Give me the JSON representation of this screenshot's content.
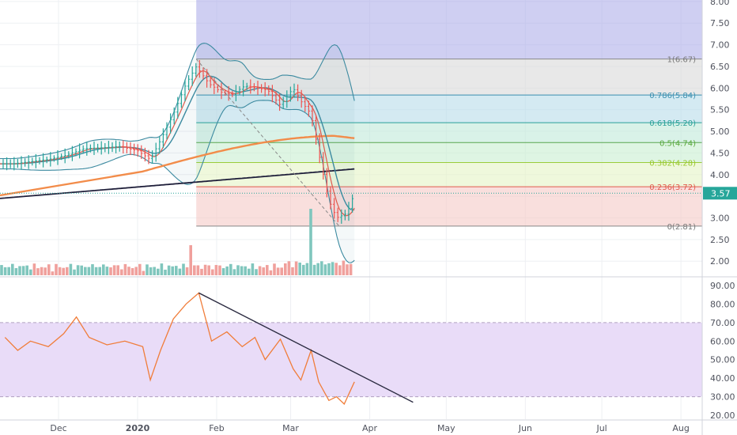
{
  "chart_data": [
    {
      "type": "candlestick",
      "panel": "price",
      "ylim": [
        1.5,
        8.0
      ],
      "y_ticks": [
        "8.00",
        "7.50",
        "7.00",
        "6.50",
        "6.00",
        "5.50",
        "5.00",
        "4.50",
        "4.00",
        "3.50",
        "3.00",
        "2.50",
        "2.00"
      ],
      "last_price": "3.57",
      "x_ticks": [
        "Dec",
        "2020",
        "Feb",
        "Mar",
        "Apr",
        "May",
        "Jun",
        "Jul",
        "Aug"
      ],
      "price_series": [
        {
          "date": "2019-11-13",
          "value": 4.25
        },
        {
          "date": "2019-11-20",
          "value": 4.3
        },
        {
          "date": "2019-11-27",
          "value": 4.35
        },
        {
          "date": "2019-12-04",
          "value": 4.45
        },
        {
          "date": "2019-12-11",
          "value": 4.6
        },
        {
          "date": "2019-12-18",
          "value": 4.62
        },
        {
          "date": "2019-12-25",
          "value": 4.65
        },
        {
          "date": "2020-01-01",
          "value": 4.55
        },
        {
          "date": "2020-01-06",
          "value": 4.35
        },
        {
          "date": "2020-01-10",
          "value": 4.8
        },
        {
          "date": "2020-01-15",
          "value": 5.4
        },
        {
          "date": "2020-01-20",
          "value": 6.1
        },
        {
          "date": "2020-01-24",
          "value": 6.5
        },
        {
          "date": "2020-01-29",
          "value": 6.1
        },
        {
          "date": "2020-02-03",
          "value": 5.9
        },
        {
          "date": "2020-02-07",
          "value": 5.85
        },
        {
          "date": "2020-02-12",
          "value": 6.05
        },
        {
          "date": "2020-02-17",
          "value": 6.0
        },
        {
          "date": "2020-02-21",
          "value": 5.95
        },
        {
          "date": "2020-02-26",
          "value": 5.6
        },
        {
          "date": "2020-03-02",
          "value": 6.0
        },
        {
          "date": "2020-03-05",
          "value": 5.7
        },
        {
          "date": "2020-03-09",
          "value": 5.4
        },
        {
          "date": "2020-03-12",
          "value": 4.5
        },
        {
          "date": "2020-03-16",
          "value": 3.4
        },
        {
          "date": "2020-03-19",
          "value": 3.0
        },
        {
          "date": "2020-03-23",
          "value": 3.1
        },
        {
          "date": "2020-03-26",
          "value": 3.57
        }
      ],
      "volume_spikes": [
        {
          "date": "2020-01-22",
          "value": "high"
        },
        {
          "date": "2020-03-09",
          "value": "very high"
        }
      ],
      "fibonacci": [
        {
          "level": "1(6.67)",
          "price": 6.67
        },
        {
          "level": "0.786(5.84)",
          "price": 5.84
        },
        {
          "level": "0.618(5.20)",
          "price": 5.2
        },
        {
          "level": "0.5(4.74)",
          "price": 4.74
        },
        {
          "level": "0.382(4.28)",
          "price": 4.28
        },
        {
          "level": "0.236(3.72)",
          "price": 3.72
        },
        {
          "level": "0(2.81)",
          "price": 2.81
        }
      ],
      "moving_average_colors": [
        "#f28c4a",
        "#1f1f3a",
        "#3c8aa0",
        "#e05a4c"
      ]
    },
    {
      "type": "line",
      "panel": "rsi",
      "ylim": [
        20,
        92
      ],
      "y_ticks": [
        "90.00",
        "80.00",
        "70.00",
        "60.00",
        "50.00",
        "40.00",
        "30.00",
        "20.00"
      ],
      "band": [
        30,
        70
      ],
      "series": [
        {
          "values": [
            {
              "date": "2019-11-10",
              "value": 62
            },
            {
              "date": "2019-11-15",
              "value": 55
            },
            {
              "date": "2019-11-20",
              "value": 60
            },
            {
              "date": "2019-11-27",
              "value": 57
            },
            {
              "date": "2019-12-03",
              "value": 64
            },
            {
              "date": "2019-12-08",
              "value": 73
            },
            {
              "date": "2019-12-13",
              "value": 62
            },
            {
              "date": "2019-12-20",
              "value": 58
            },
            {
              "date": "2019-12-27",
              "value": 60
            },
            {
              "date": "2020-01-03",
              "value": 57
            },
            {
              "date": "2020-01-06",
              "value": 39
            },
            {
              "date": "2020-01-10",
              "value": 55
            },
            {
              "date": "2020-01-15",
              "value": 72
            },
            {
              "date": "2020-01-20",
              "value": 80
            },
            {
              "date": "2020-01-25",
              "value": 86
            },
            {
              "date": "2020-01-30",
              "value": 60
            },
            {
              "date": "2020-02-05",
              "value": 65
            },
            {
              "date": "2020-02-11",
              "value": 57
            },
            {
              "date": "2020-02-16",
              "value": 62
            },
            {
              "date": "2020-02-20",
              "value": 50
            },
            {
              "date": "2020-02-26",
              "value": 61
            },
            {
              "date": "2020-03-02",
              "value": 45
            },
            {
              "date": "2020-03-05",
              "value": 39
            },
            {
              "date": "2020-03-09",
              "value": 55
            },
            {
              "date": "2020-03-12",
              "value": 38
            },
            {
              "date": "2020-03-16",
              "value": 28
            },
            {
              "date": "2020-03-19",
              "value": 30
            },
            {
              "date": "2020-03-22",
              "value": 26
            },
            {
              "date": "2020-03-26",
              "value": 38
            }
          ]
        }
      ],
      "trendline": [
        {
          "date": "2020-01-25",
          "value": 86
        },
        {
          "date": "2020-04-18",
          "value": 27
        }
      ]
    }
  ]
}
